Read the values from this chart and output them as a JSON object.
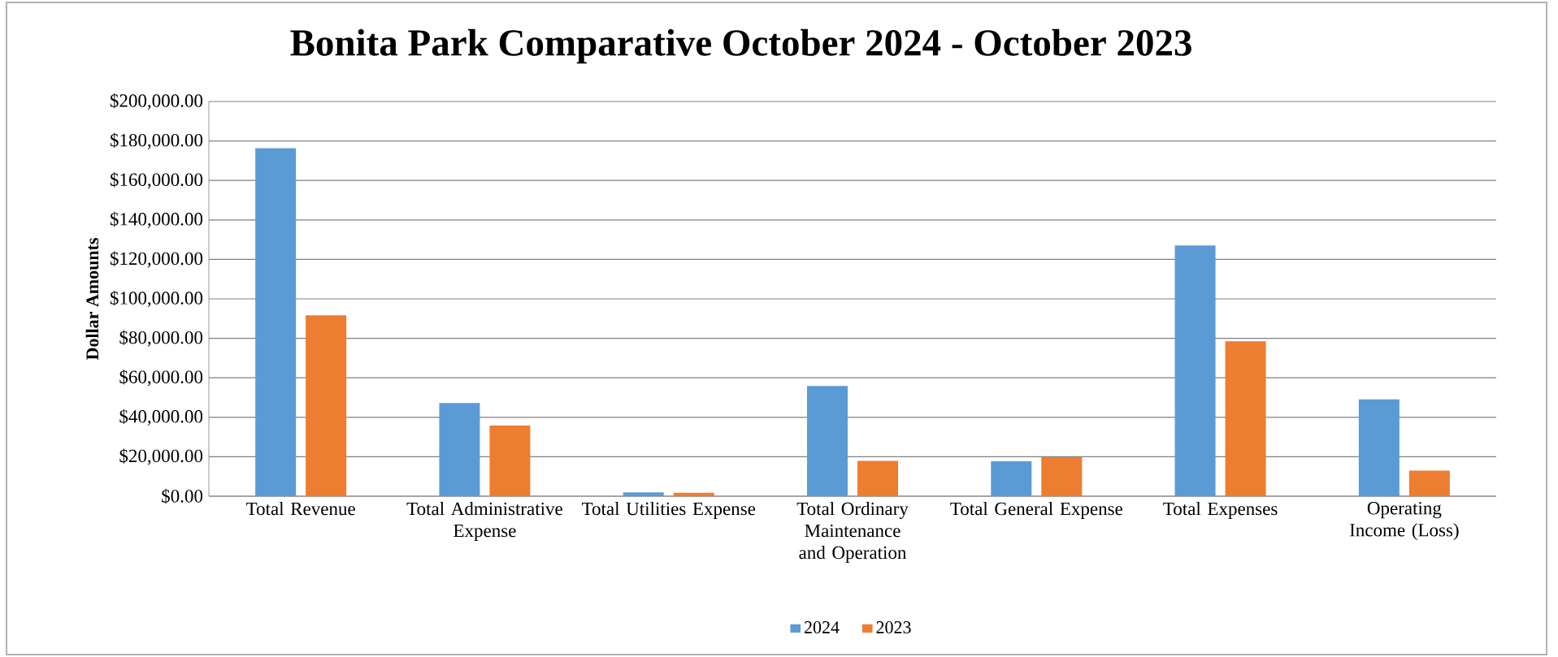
{
  "chart_data": {
    "type": "bar",
    "title": "Bonita Park Comparative October 2024 - October 2023",
    "ylabel": "Dollar Amounts",
    "categories": [
      "Total Revenue",
      "Total Administrative Expense",
      "Total Utilities Expense",
      "Total Ordinary Maintenance and Operation",
      "Total General Expense",
      "Total Expenses",
      "Operating Income (Loss)"
    ],
    "series": [
      {
        "name": "2024",
        "color": "#5b9bd5",
        "values": [
          176300,
          47200,
          2000,
          55900,
          17700,
          127100,
          49100
        ]
      },
      {
        "name": "2023",
        "color": "#ed7d31",
        "values": [
          91700,
          35800,
          1700,
          17900,
          19800,
          78500,
          13000
        ]
      }
    ],
    "ylim": [
      0,
      200000
    ],
    "yticks": [
      {
        "value": 0,
        "label": "$0.00"
      },
      {
        "value": 20000,
        "label": "$20,000.00"
      },
      {
        "value": 40000,
        "label": "$40,000.00"
      },
      {
        "value": 60000,
        "label": "$60,000.00"
      },
      {
        "value": 80000,
        "label": "$80,000.00"
      },
      {
        "value": 100000,
        "label": "$100,000.00"
      },
      {
        "value": 120000,
        "label": "$120,000.00"
      },
      {
        "value": 140000,
        "label": "$140,000.00"
      },
      {
        "value": 160000,
        "label": "$160,000.00"
      },
      {
        "value": 180000,
        "label": "$180,000.00"
      },
      {
        "value": 200000,
        "label": "$200,000.00"
      }
    ],
    "grid": "y",
    "legend": "bottom"
  }
}
